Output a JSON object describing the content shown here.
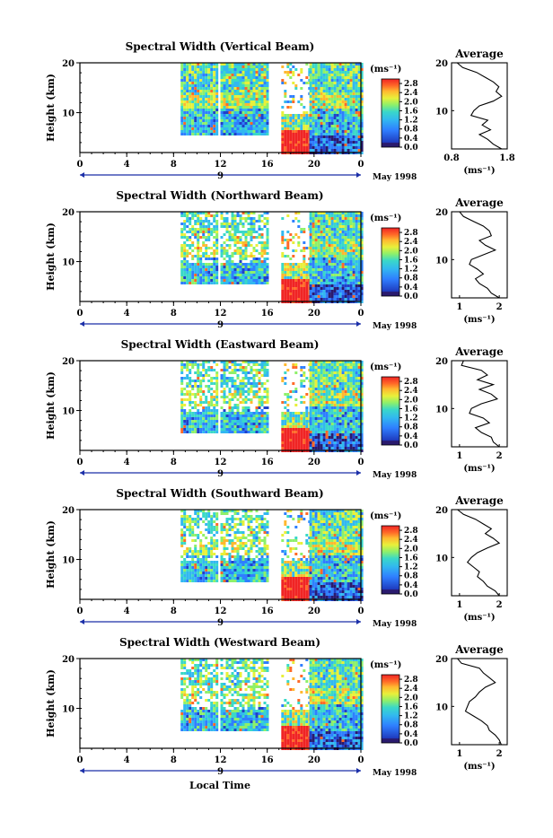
{
  "chart_data": [
    {
      "type": "heatmap",
      "title": "Spectral Width (Vertical Beam)",
      "ylabel": "Height (km)",
      "x_ticks": [
        "0",
        "4",
        "8",
        "12",
        "16",
        "20",
        "0"
      ],
      "x_range": [
        0,
        24
      ],
      "y_ticks": [
        "20",
        "10"
      ],
      "y_range": [
        2,
        20
      ],
      "date_label": "9",
      "month_label": "May 1998",
      "colorbar": {
        "unit": "(ms⁻¹)",
        "ticks": [
          "2.8",
          "2.4",
          "2.0",
          "1.6",
          "1.2",
          "0.8",
          "0.4",
          "0.0"
        ],
        "range": [
          0,
          3.0
        ]
      },
      "data_segments_hours": [
        [
          8.6,
          11.6
        ],
        [
          12.0,
          16.0
        ],
        [
          17.2,
          19.6
        ],
        [
          19.6,
          24.0
        ]
      ],
      "average_profile": {
        "title": "Average",
        "xlabel": "(ms⁻¹)",
        "x_ticks": [
          "0.8",
          "1.8"
        ],
        "xlim": [
          0.8,
          1.8
        ],
        "y_ticks": [
          "20",
          "10"
        ],
        "height_km": [
          20,
          19,
          18,
          17,
          16,
          15,
          14,
          13,
          12,
          11,
          10,
          9,
          8,
          7,
          6,
          5,
          4,
          3,
          2
        ],
        "width_ms": [
          0.9,
          1.0,
          1.25,
          1.4,
          1.55,
          1.65,
          1.6,
          1.7,
          1.55,
          1.3,
          1.2,
          1.15,
          1.45,
          1.35,
          1.5,
          1.3,
          1.45,
          1.55,
          1.7
        ]
      }
    },
    {
      "type": "heatmap",
      "title": "Spectral Width (Northward Beam)",
      "ylabel": "Height (km)",
      "x_ticks": [
        "0",
        "4",
        "8",
        "12",
        "16",
        "20",
        "0"
      ],
      "x_range": [
        0,
        24
      ],
      "y_ticks": [
        "20",
        "10"
      ],
      "y_range": [
        2,
        20
      ],
      "date_label": "9",
      "month_label": "May 1998",
      "colorbar": {
        "unit": "(ms⁻¹)",
        "ticks": [
          "2.8",
          "2.4",
          "2.0",
          "1.6",
          "1.2",
          "0.8",
          "0.4",
          "0.0"
        ],
        "range": [
          0,
          3.0
        ]
      },
      "data_segments_hours": [
        [
          8.6,
          11.6
        ],
        [
          12.0,
          16.0
        ],
        [
          17.2,
          19.6
        ],
        [
          19.6,
          24.0
        ]
      ],
      "average_profile": {
        "title": "Average",
        "xlabel": "(ms⁻¹)",
        "x_ticks": [
          "1",
          "2"
        ],
        "xlim": [
          0.8,
          2.2
        ],
        "y_ticks": [
          "20",
          "10"
        ],
        "height_km": [
          20,
          19,
          18,
          17,
          16,
          15,
          14,
          13,
          12,
          11,
          10,
          9,
          8,
          7,
          6,
          5,
          4,
          3,
          2
        ],
        "width_ms": [
          1.0,
          1.1,
          1.35,
          1.6,
          1.75,
          1.8,
          1.5,
          1.65,
          1.9,
          1.6,
          1.3,
          1.25,
          1.45,
          1.6,
          1.4,
          1.5,
          1.7,
          1.8,
          2.0
        ]
      }
    },
    {
      "type": "heatmap",
      "title": "Spectral Width (Eastward Beam)",
      "ylabel": "Height (km)",
      "x_ticks": [
        "0",
        "4",
        "8",
        "12",
        "16",
        "20",
        "0"
      ],
      "x_range": [
        0,
        24
      ],
      "y_ticks": [
        "20",
        "10"
      ],
      "y_range": [
        2,
        20
      ],
      "date_label": "9",
      "month_label": "May 1998",
      "colorbar": {
        "unit": "(ms⁻¹)",
        "ticks": [
          "2.8",
          "2.4",
          "2.0",
          "1.6",
          "1.2",
          "0.8",
          "0.4",
          "0.0"
        ],
        "range": [
          0,
          3.0
        ]
      },
      "data_segments_hours": [
        [
          8.6,
          11.6
        ],
        [
          12.0,
          16.0
        ],
        [
          17.2,
          19.6
        ],
        [
          19.6,
          24.0
        ]
      ],
      "average_profile": {
        "title": "Average",
        "xlabel": "(ms⁻¹)",
        "x_ticks": [
          "1",
          "2"
        ],
        "xlim": [
          0.8,
          2.2
        ],
        "y_ticks": [
          "20",
          "10"
        ],
        "height_km": [
          20,
          19,
          18,
          17,
          16,
          15,
          14,
          13,
          12,
          11,
          10,
          9,
          8,
          7,
          6,
          5,
          4,
          3,
          2
        ],
        "width_ms": [
          1.1,
          1.05,
          1.55,
          1.7,
          1.45,
          1.85,
          1.5,
          1.8,
          1.95,
          1.55,
          1.3,
          1.25,
          1.6,
          1.75,
          1.4,
          1.55,
          1.8,
          1.85,
          2.0
        ]
      }
    },
    {
      "type": "heatmap",
      "title": "Spectral Width (Southward Beam)",
      "ylabel": "Height (km)",
      "x_ticks": [
        "0",
        "4",
        "8",
        "12",
        "16",
        "20",
        "0"
      ],
      "x_range": [
        0,
        24
      ],
      "y_ticks": [
        "20",
        "10"
      ],
      "y_range": [
        2,
        20
      ],
      "date_label": "9",
      "month_label": "May 1998",
      "colorbar": {
        "unit": "(ms⁻¹)",
        "ticks": [
          "2.8",
          "2.4",
          "2.0",
          "1.6",
          "1.2",
          "0.8",
          "0.4",
          "0.0"
        ],
        "range": [
          0,
          3.0
        ]
      },
      "data_segments_hours": [
        [
          8.6,
          11.6
        ],
        [
          12.0,
          16.0
        ],
        [
          17.2,
          19.6
        ],
        [
          19.6,
          24.0
        ]
      ],
      "average_profile": {
        "title": "Average",
        "xlabel": "(ms⁻¹)",
        "x_ticks": [
          "1",
          "2"
        ],
        "xlim": [
          0.8,
          2.2
        ],
        "y_ticks": [
          "20",
          "10"
        ],
        "height_km": [
          20,
          19,
          18,
          17,
          16,
          15,
          14,
          13,
          12,
          11,
          10,
          9,
          8,
          7,
          6,
          5,
          4,
          3,
          2
        ],
        "width_ms": [
          0.95,
          1.1,
          1.4,
          1.6,
          1.8,
          1.65,
          1.85,
          2.0,
          1.7,
          1.45,
          1.3,
          1.2,
          1.35,
          1.5,
          1.45,
          1.6,
          1.7,
          1.9,
          2.0
        ]
      }
    },
    {
      "type": "heatmap",
      "title": "Spectral Width (Westward Beam)",
      "ylabel": "Height (km)",
      "x_ticks": [
        "0",
        "4",
        "8",
        "12",
        "16",
        "20",
        "0"
      ],
      "x_range": [
        0,
        24
      ],
      "y_ticks": [
        "20",
        "10"
      ],
      "y_range": [
        2,
        20
      ],
      "date_label": "9",
      "month_label": "May 1998",
      "colorbar": {
        "unit": "(ms⁻¹)",
        "ticks": [
          "2.8",
          "2.4",
          "2.0",
          "1.6",
          "1.2",
          "0.8",
          "0.4",
          "0.0"
        ],
        "range": [
          0,
          3.0
        ]
      },
      "data_segments_hours": [
        [
          8.6,
          11.6
        ],
        [
          12.0,
          16.0
        ],
        [
          17.2,
          19.6
        ],
        [
          19.6,
          24.0
        ]
      ],
      "average_profile": {
        "title": "Average",
        "xlabel": "(ms⁻¹)",
        "x_ticks": [
          "1",
          "2"
        ],
        "xlim": [
          0.8,
          2.2
        ],
        "y_ticks": [
          "20",
          "10"
        ],
        "height_km": [
          20,
          19,
          18,
          17,
          16,
          15,
          14,
          13,
          12,
          11,
          10,
          9,
          8,
          7,
          6,
          5,
          4,
          3,
          2
        ],
        "width_ms": [
          0.95,
          1.05,
          1.5,
          1.6,
          1.75,
          1.9,
          1.65,
          1.5,
          1.4,
          1.25,
          1.2,
          1.15,
          1.35,
          1.55,
          1.7,
          1.75,
          1.9,
          2.0,
          2.05
        ]
      }
    }
  ],
  "footer": {
    "xlabel": "Local Time"
  },
  "colors": {
    "scale": [
      "#2a1a6e",
      "#2040c8",
      "#2f7fff",
      "#32b8f0",
      "#3ad8c8",
      "#8ef06a",
      "#e8f03a",
      "#ffb830",
      "#ff6a28",
      "#f02424"
    ],
    "axis": "#000000",
    "date_arrow": "#1b2fa8"
  }
}
